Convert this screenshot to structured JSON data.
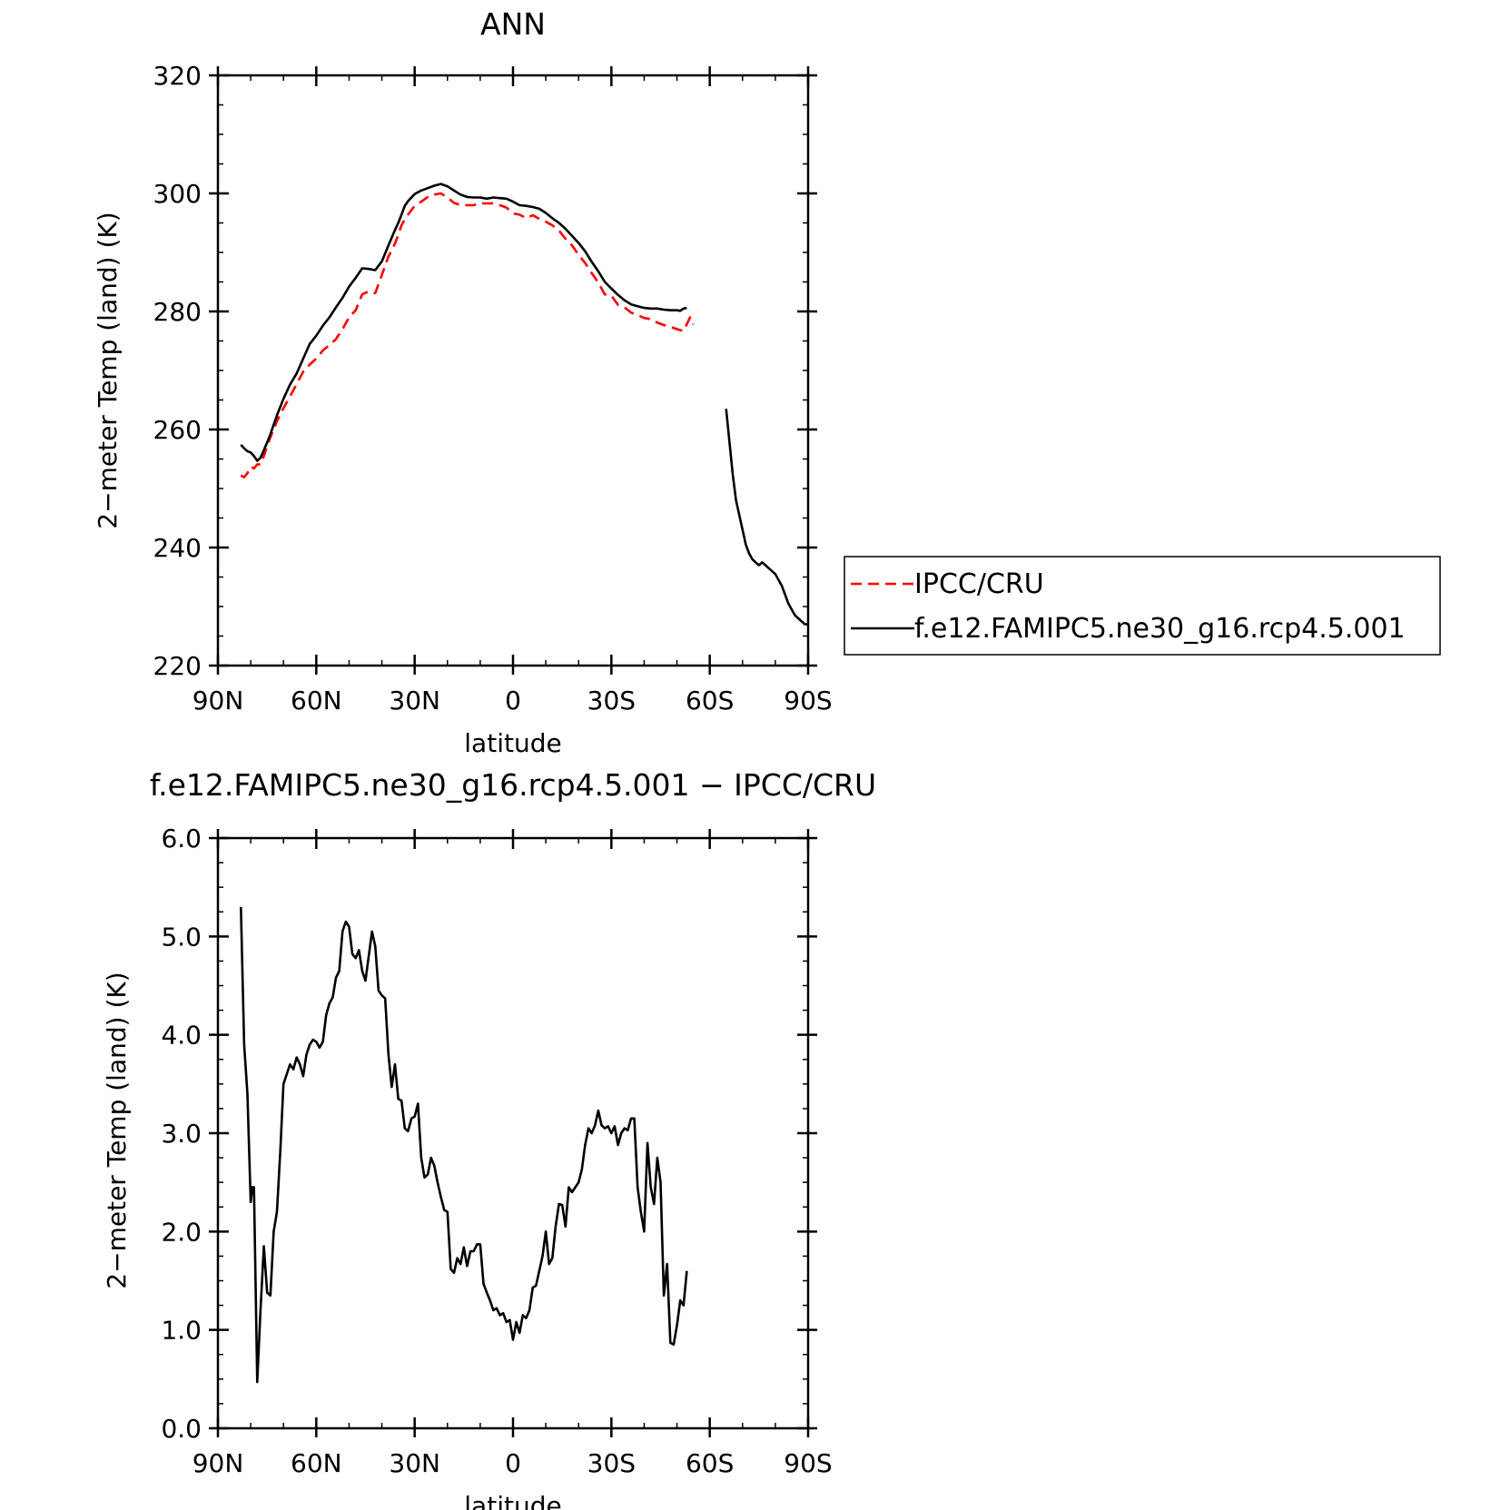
{
  "chart_data": [
    {
      "type": "line",
      "title": "ANN",
      "xlabel": "latitude",
      "ylabel": "2−meter Temp (land) (K)",
      "xlim": [
        90,
        -90
      ],
      "ylim": [
        220,
        320
      ],
      "xticks": [
        90,
        60,
        30,
        0,
        -30,
        -60,
        -90
      ],
      "xtick_labels": [
        "90N",
        "60N",
        "30N",
        "0",
        "30S",
        "60S",
        "90S"
      ],
      "yticks": [
        220,
        240,
        260,
        280,
        300,
        320
      ],
      "ytick_labels": [
        "220",
        "240",
        "260",
        "280",
        "300",
        "320"
      ],
      "legend_position": "right",
      "series": [
        {
          "name": "IPCC/CRU",
          "color": "#ff0000",
          "style": "dashed",
          "segments": [
            {
              "x": [
                83,
                82,
                81,
                80,
                79,
                78,
                77,
                76,
                75,
                74,
                72,
                70,
                68,
                66,
                64,
                62,
                60,
                58,
                56,
                54,
                52,
                50,
                48,
                46,
                44,
                42,
                40,
                38,
                36,
                35,
                34,
                33,
                32,
                30,
                28,
                26,
                24,
                22,
                20,
                18,
                16,
                14,
                12,
                10,
                8,
                6,
                4,
                2,
                0,
                -2,
                -4,
                -6,
                -8,
                -10,
                -12,
                -14,
                -16,
                -18,
                -20,
                -22,
                -24,
                -26,
                -28,
                -30,
                -32,
                -34,
                -36,
                -38,
                -40,
                -42,
                -44,
                -46,
                -48,
                -50,
                -52,
                -54,
                -55
              ],
              "y": [
                252.2,
                251.9,
                252.6,
                253.7,
                253.4,
                254.1,
                254.1,
                255.5,
                257.2,
                258.7,
                261.4,
                263.6,
                265.6,
                267.7,
                269.8,
                271.0,
                272.0,
                273.4,
                274.3,
                275.3,
                277.0,
                279.0,
                280.2,
                282.9,
                283.4,
                283.1,
                286.2,
                289.3,
                291.5,
                293.0,
                294.6,
                295.6,
                296.4,
                297.9,
                298.6,
                299.4,
                299.8,
                300.0,
                299.3,
                298.4,
                298.0,
                298.0,
                298.0,
                298.3,
                298.3,
                298.3,
                298.0,
                297.6,
                296.6,
                296.4,
                295.8,
                296.3,
                295.7,
                295.2,
                294.6,
                293.7,
                292.3,
                291.2,
                289.6,
                288.2,
                286.5,
                284.9,
                282.9,
                282.7,
                281.1,
                280.7,
                279.8,
                279.4,
                278.9,
                278.7,
                278.1,
                277.7,
                277.4,
                277.0,
                276.7,
                279.0,
                277.8
              ]
            }
          ]
        },
        {
          "name": "f.e12.FAMIPC5.ne30_g16.rcp4.5.001",
          "color": "#000000",
          "style": "solid",
          "segments": [
            {
              "x": [
                83,
                82,
                81,
                80,
                79,
                78,
                77,
                76,
                75,
                74,
                72,
                70,
                68,
                66,
                64,
                62,
                60,
                58,
                56,
                54,
                52,
                50,
                48,
                46,
                44,
                42,
                40,
                38,
                36,
                35,
                34,
                33,
                32,
                30,
                28,
                26,
                24,
                22,
                20,
                18,
                16,
                14,
                12,
                10,
                8,
                6,
                4,
                2,
                0,
                -2,
                -4,
                -6,
                -8,
                -10,
                -12,
                -14,
                -16,
                -18,
                -20,
                -22,
                -24,
                -26,
                -28,
                -30,
                -32,
                -34,
                -36,
                -38,
                -40,
                -42,
                -44,
                -46,
                -48,
                -50,
                -51,
                -52,
                -53
              ],
              "y": [
                257.4,
                256.8,
                256.3,
                256.1,
                255.5,
                254.7,
                255.2,
                256.5,
                257.8,
                259.2,
                262.4,
                265.2,
                267.6,
                269.5,
                272.0,
                274.5,
                275.9,
                277.6,
                279.0,
                280.7,
                282.3,
                284.2,
                285.7,
                287.3,
                287.2,
                287.0,
                288.5,
                291.2,
                293.8,
                295.0,
                296.4,
                297.9,
                298.7,
                299.9,
                300.5,
                300.9,
                301.3,
                301.6,
                301.2,
                300.5,
                299.8,
                299.4,
                299.3,
                299.3,
                299.1,
                299.3,
                299.2,
                299.1,
                298.6,
                298.0,
                297.9,
                297.7,
                297.4,
                296.7,
                295.8,
                295.0,
                294.0,
                292.8,
                291.6,
                290.2,
                288.4,
                286.8,
                285.0,
                283.9,
                282.8,
                281.9,
                281.2,
                280.9,
                280.6,
                280.5,
                280.5,
                280.3,
                280.2,
                280.2,
                280.1,
                280.5,
                280.6
              ]
            },
            {
              "x": [
                -65,
                -66,
                -67,
                -68,
                -69,
                -70,
                -71,
                -72,
                -73,
                -74,
                -75,
                -76,
                -77,
                -78,
                -80,
                -82,
                -84,
                -85,
                -86,
                -87,
                -88,
                -89,
                -90
              ],
              "y": [
                263.5,
                258.0,
                252.5,
                248.0,
                245.5,
                243.0,
                240.5,
                239.0,
                238.0,
                237.5,
                237.0,
                237.5,
                237.0,
                236.5,
                235.5,
                233.5,
                230.5,
                229.5,
                228.5,
                228.0,
                227.5,
                227.0,
                227.0
              ]
            }
          ]
        }
      ]
    },
    {
      "type": "line",
      "title": "f.e12.FAMIPC5.ne30_g16.rcp4.5.001 − IPCC/CRU",
      "xlabel": "latitude",
      "ylabel": "2−meter Temp (land) (K)",
      "xlim": [
        90,
        -90
      ],
      "ylim": [
        0,
        6
      ],
      "xticks": [
        90,
        60,
        30,
        0,
        -30,
        -60,
        -90
      ],
      "xtick_labels": [
        "90N",
        "60N",
        "30N",
        "0",
        "30S",
        "60S",
        "90S"
      ],
      "yticks": [
        0,
        1,
        2,
        3,
        4,
        5,
        6
      ],
      "ytick_labels": [
        "0.0",
        "1.0",
        "2.0",
        "3.0",
        "4.0",
        "5.0",
        "6.0"
      ],
      "series": [
        {
          "color": "#000000",
          "style": "solid",
          "segments": [
            {
              "x": [
                83,
                82,
                81,
                80,
                79.5,
                79,
                78,
                77,
                76,
                75,
                74,
                73,
                72,
                71,
                70,
                69,
                68,
                67,
                66,
                65,
                64,
                63,
                62,
                61,
                60,
                59,
                58,
                57,
                56,
                55,
                54,
                53,
                52,
                51,
                50,
                49,
                48,
                47,
                46,
                45,
                44,
                43,
                42,
                41,
                40,
                39,
                38,
                37,
                36,
                35,
                34,
                33,
                32,
                31,
                30,
                29,
                28,
                27,
                26,
                25,
                24,
                23,
                22,
                21,
                20,
                19,
                18,
                17,
                16,
                15,
                14,
                13,
                12,
                11,
                10,
                9,
                8,
                7,
                6,
                5,
                4,
                3,
                2,
                1,
                0,
                -1,
                -2,
                -3,
                -4,
                -5,
                -6,
                -7,
                -8,
                -9,
                -10,
                -11,
                -12,
                -13,
                -14,
                -15,
                -16,
                -17,
                -18,
                -19,
                -20,
                -21,
                -22,
                -23,
                -24,
                -25,
                -26,
                -27,
                -28,
                -29,
                -30,
                -31,
                -32,
                -33,
                -34,
                -35,
                -36,
                -37,
                -38,
                -39,
                -40,
                -41,
                -42,
                -43,
                -44,
                -45,
                -46,
                -47,
                -48,
                -49,
                -50,
                -51,
                -52,
                -53
              ],
              "y": [
                5.3,
                3.9,
                3.4,
                2.3,
                2.45,
                2.45,
                0.47,
                1.2,
                1.85,
                1.38,
                1.35,
                2.0,
                2.2,
                2.8,
                3.5,
                3.6,
                3.7,
                3.65,
                3.77,
                3.7,
                3.58,
                3.8,
                3.9,
                3.95,
                3.93,
                3.87,
                3.93,
                4.2,
                4.32,
                4.38,
                4.58,
                4.65,
                5.05,
                5.15,
                5.1,
                4.82,
                4.78,
                4.86,
                4.65,
                4.55,
                4.8,
                5.05,
                4.9,
                4.45,
                4.4,
                4.37,
                3.8,
                3.47,
                3.7,
                3.35,
                3.33,
                3.05,
                3.02,
                3.15,
                3.17,
                3.3,
                2.75,
                2.55,
                2.58,
                2.75,
                2.67,
                2.5,
                2.35,
                2.22,
                2.2,
                1.62,
                1.58,
                1.73,
                1.67,
                1.84,
                1.65,
                1.8,
                1.8,
                1.87,
                1.87,
                1.47,
                1.38,
                1.3,
                1.2,
                1.22,
                1.15,
                1.17,
                1.08,
                1.1,
                0.9,
                1.08,
                0.97,
                1.15,
                1.12,
                1.2,
                1.43,
                1.45,
                1.6,
                1.75,
                2.0,
                1.67,
                1.73,
                2.05,
                2.28,
                2.27,
                2.05,
                2.45,
                2.4,
                2.45,
                2.5,
                2.63,
                2.88,
                3.05,
                3.0,
                3.08,
                3.23,
                3.08,
                3.05,
                3.07,
                3.0,
                3.07,
                2.88,
                3.0,
                3.05,
                3.03,
                3.15,
                3.15,
                2.45,
                2.2,
                2.0,
                2.9,
                2.45,
                2.28,
                2.75,
                2.5,
                1.35,
                1.67,
                0.87,
                0.85,
                1.05,
                1.3,
                1.25,
                1.6
              ]
            }
          ]
        }
      ]
    }
  ]
}
